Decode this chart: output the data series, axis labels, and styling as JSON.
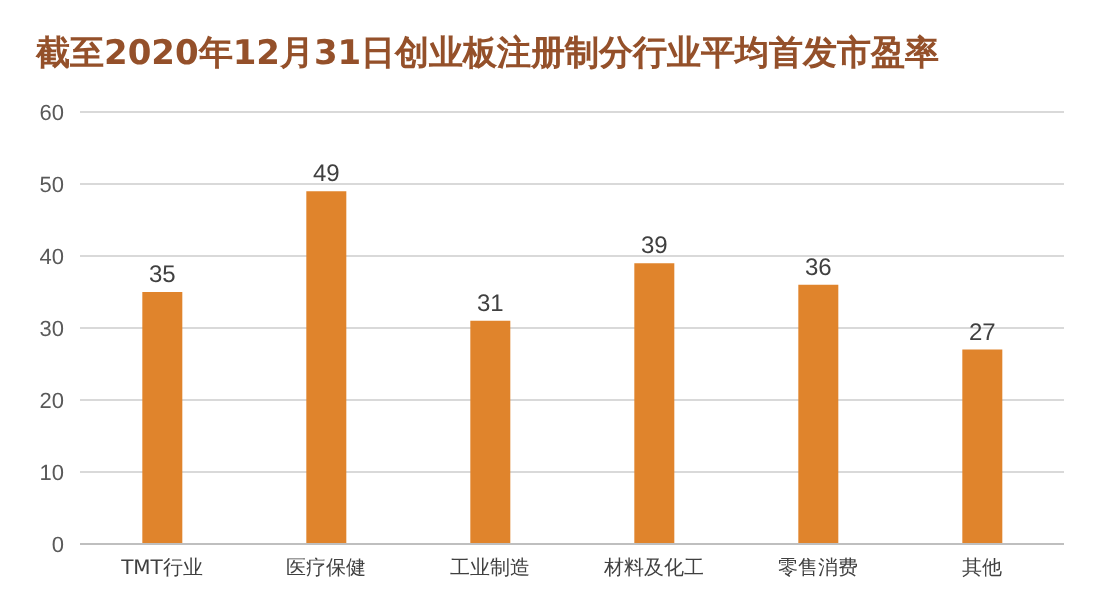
{
  "chart_data": {
    "type": "bar",
    "title": "截至2020年12月31日创业板注册制分行业平均首发市盈率",
    "categories": [
      "TMT行业",
      "医疗保健",
      "工业制造",
      "材料及化工",
      "零售消费",
      "其他"
    ],
    "values": [
      35,
      49,
      31,
      39,
      36,
      27
    ],
    "color": "#e0842c",
    "ylim": [
      0,
      60
    ],
    "yticks": [
      0,
      10,
      20,
      30,
      40,
      50,
      60
    ],
    "grid": "y",
    "data_labels": true
  }
}
